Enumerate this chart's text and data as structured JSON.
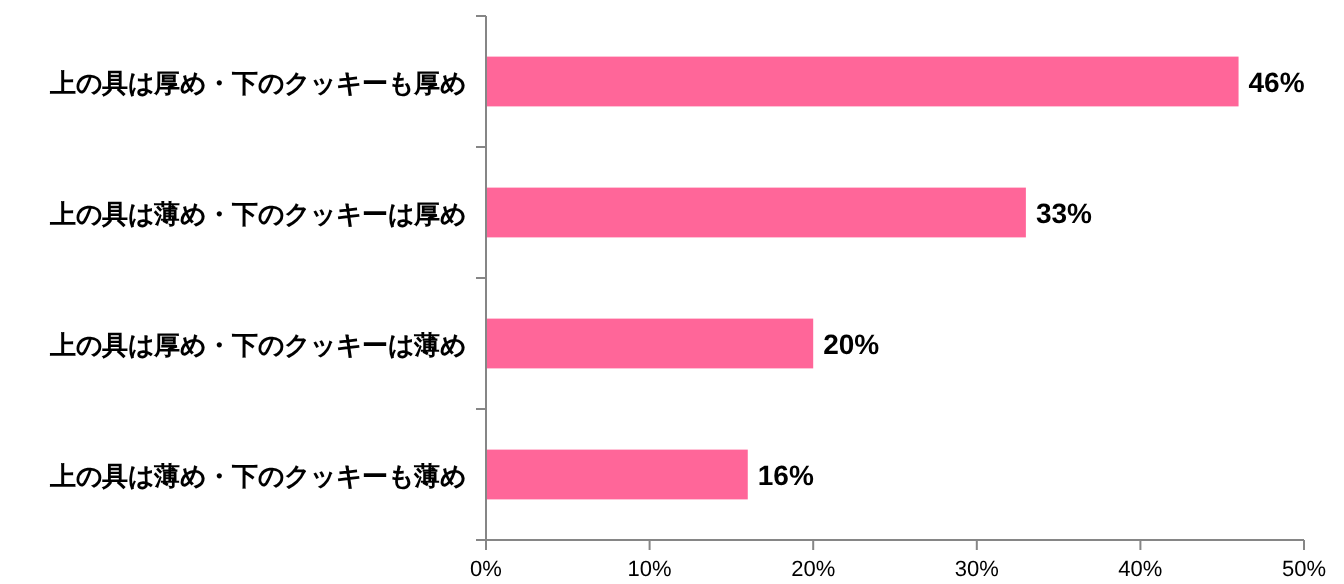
{
  "chart_data": {
    "type": "bar",
    "orientation": "horizontal",
    "categories": [
      "上の具は厚め・下のクッキーも厚め",
      "上の具は薄め・下のクッキーは厚め",
      "上の具は厚め・下のクッキーは薄め",
      "上の具は薄め・下のクッキーも薄め"
    ],
    "values": [
      46,
      33,
      20,
      16
    ],
    "value_labels": [
      "46%",
      "33%",
      "20%",
      "16%"
    ],
    "color": "#ff6699",
    "xlim": [
      0,
      50
    ],
    "xticks": [
      {
        "value": 0,
        "label": "0%"
      },
      {
        "value": 10,
        "label": "10%"
      },
      {
        "value": 20,
        "label": "20%"
      },
      {
        "value": 30,
        "label": "30%"
      },
      {
        "value": 40,
        "label": "40%"
      },
      {
        "value": 50,
        "label": "50%"
      }
    ],
    "grid": false
  }
}
